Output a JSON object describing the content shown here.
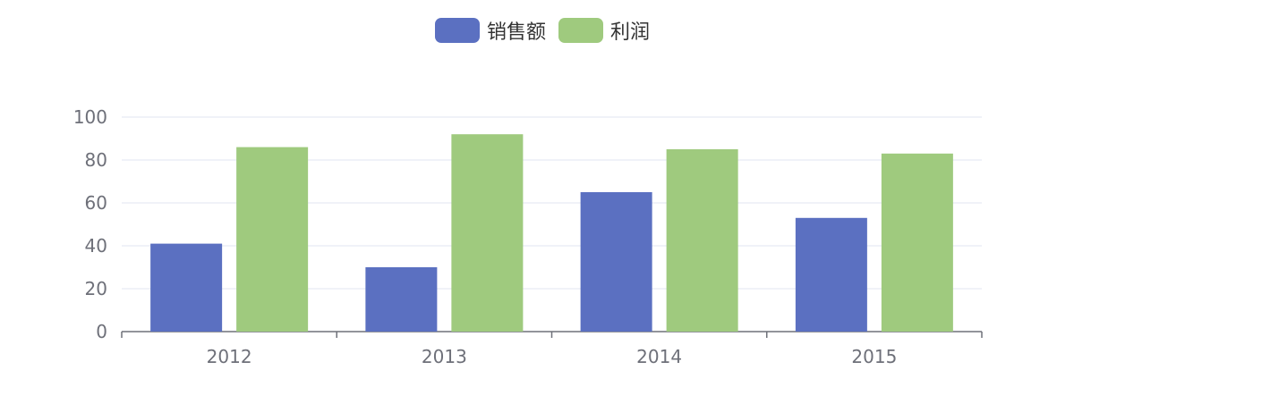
{
  "chart_data": {
    "type": "bar",
    "categories": [
      "2012",
      "2013",
      "2014",
      "2015"
    ],
    "series": [
      {
        "name": "销售额",
        "color": "#5b70c1",
        "values": [
          41,
          30,
          65,
          53
        ]
      },
      {
        "name": "利润",
        "color": "#9fca7e",
        "values": [
          86,
          92,
          85,
          83
        ]
      }
    ],
    "ylim": [
      0,
      100
    ],
    "yticks": [
      0,
      20,
      40,
      60,
      80,
      100
    ],
    "legend_position": "top-center",
    "grid": true
  }
}
